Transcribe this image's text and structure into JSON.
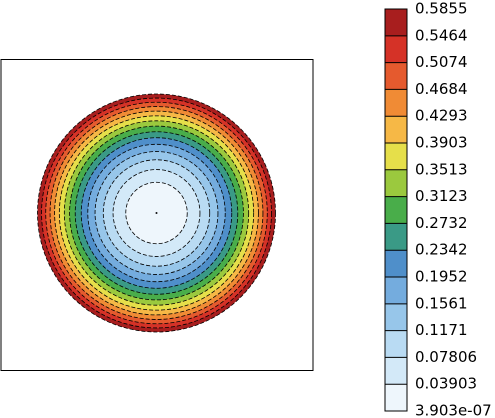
{
  "chart_data": {
    "type": "contour",
    "levels": [
      {
        "value": 3.903e-07,
        "label": "3.903e-07"
      },
      0.03903,
      0.07806,
      0.1171,
      0.1561,
      0.1952,
      0.2342,
      0.2732,
      0.3123,
      0.3513,
      0.3903,
      0.4293,
      0.4684,
      0.5074,
      0.5464,
      0.5855
    ],
    "colors": [
      "#eef6fc",
      "#d3e9f8",
      "#b9dbf3",
      "#97c6ea",
      "#74acde",
      "#4f8fca",
      "#3a9a86",
      "#49ad4a",
      "#9bc93e",
      "#e6df4a",
      "#f6b846",
      "#f08b35",
      "#e55a2e",
      "#d53227",
      "#a81e1e"
    ]
  }
}
